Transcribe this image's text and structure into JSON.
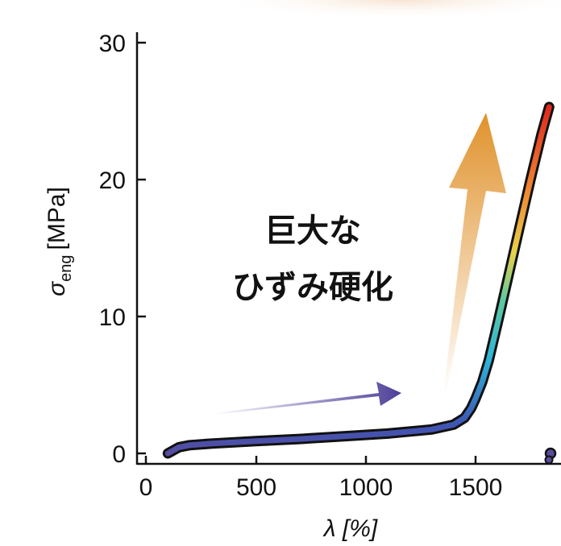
{
  "chart_data": {
    "type": "line",
    "xlabel": "λ [%]",
    "ylabel": "σ",
    "ylabel_subscript": "eng",
    "ylabel_unit": "[MPa]",
    "x_ticks": [
      "0",
      "500",
      "1000",
      "1500"
    ],
    "y_ticks": [
      "0",
      "10",
      "20",
      "30"
    ],
    "xlim": [
      -30,
      1860
    ],
    "ylim": [
      -0.8,
      31
    ],
    "grid": false,
    "annotation": [
      "巨大な",
      "ひずみ硬化"
    ],
    "series": [
      {
        "x": [
          100,
          150,
          200,
          300,
          500,
          700,
          900,
          1100,
          1300,
          1400,
          1450,
          1480,
          1500,
          1530,
          1560,
          1600,
          1650,
          1700,
          1750,
          1800,
          1835
        ],
        "y": [
          0.0,
          0.45,
          0.6,
          0.72,
          0.9,
          1.05,
          1.25,
          1.45,
          1.75,
          2.1,
          2.6,
          3.3,
          4.0,
          5.2,
          6.8,
          9.5,
          13.0,
          16.5,
          20.0,
          23.3,
          25.3
        ]
      }
    ],
    "colors": {
      "line_low": "#5a4a9c",
      "line_cyan": "#2eb4d8",
      "line_yellow": "#e6d24a",
      "line_red": "#e0261e",
      "arrow_purple": "#4e3f98",
      "arrow_orange": "#e0922c"
    }
  }
}
